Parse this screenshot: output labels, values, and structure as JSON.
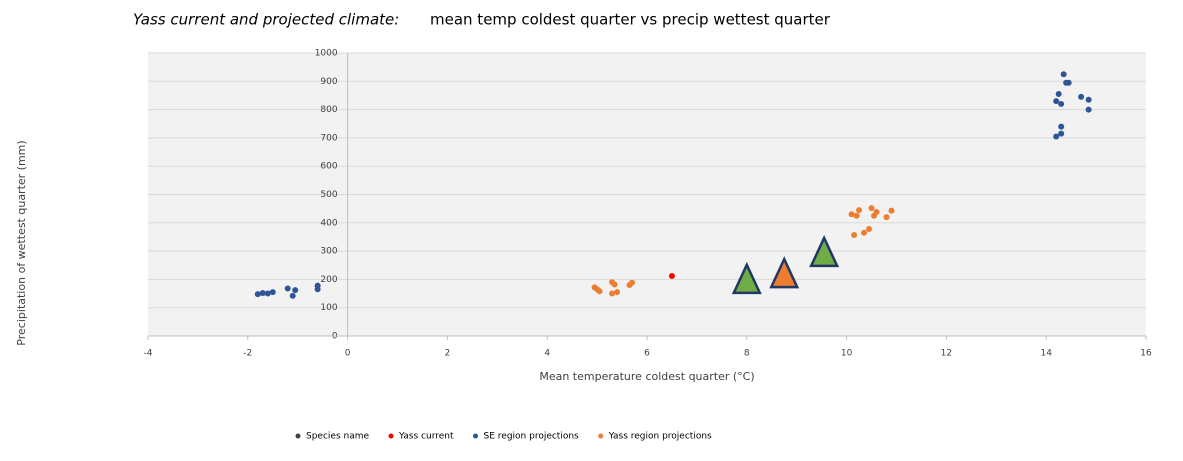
{
  "chart_data": {
    "type": "scatter",
    "title": "Yass current and projected climate:",
    "subtitle": "mean temp coldest quarter vs precip wettest quarter",
    "x_label": "Mean temperature coldest quarter (°C)",
    "y_label": "Precipitation of wettest quarter (mm)",
    "xlim": [
      -4,
      16
    ],
    "xticks": [
      -4,
      -2,
      0,
      2,
      4,
      6,
      8,
      10,
      12,
      14,
      16
    ],
    "ylim": [
      0,
      1000
    ],
    "yticks": [
      0,
      100,
      200,
      300,
      400,
      500,
      600,
      700,
      800,
      900,
      1000
    ],
    "grid": true,
    "legend": "bottom",
    "series": [
      {
        "name": "Species name",
        "color": "#404040",
        "x": [],
        "values": []
      },
      {
        "name": "Yass current",
        "color": "#ff0000",
        "x": [
          6.5
        ],
        "values": [
          212
        ]
      },
      {
        "name": "SE region projections",
        "color": "#2f5597",
        "x": [
          -1.8,
          -1.7,
          -1.6,
          -1.5,
          -1.2,
          -1.1,
          -1.05,
          -0.6,
          -0.6,
          14.2,
          14.25,
          14.3,
          14.35,
          14.4,
          14.45,
          14.3,
          14.3,
          14.2,
          14.7,
          14.85,
          14.85
        ],
        "values": [
          148,
          152,
          150,
          155,
          168,
          142,
          162,
          178,
          165,
          830,
          855,
          820,
          925,
          895,
          895,
          740,
          715,
          705,
          845,
          835,
          800
        ]
      },
      {
        "name": "Yass region projections",
        "color": "#ed7d31",
        "x": [
          4.95,
          5.0,
          5.05,
          5.3,
          5.3,
          5.35,
          5.4,
          5.65,
          5.7,
          10.1,
          10.2,
          10.25,
          10.15,
          10.35,
          10.45,
          10.5,
          10.55,
          10.6,
          10.8,
          10.9
        ],
        "values": [
          172,
          165,
          158,
          190,
          150,
          182,
          155,
          180,
          188,
          430,
          425,
          445,
          357,
          365,
          378,
          452,
          425,
          438,
          420,
          443
        ]
      },
      {
        "color": "#70ad47",
        "marker": "triangle",
        "x": [
          8,
          9.55
        ],
        "values": [
          195,
          290
        ]
      },
      {
        "color": "#ed7d31",
        "marker": "triangle",
        "x": [
          8.75
        ],
        "values": [
          215
        ]
      }
    ]
  }
}
